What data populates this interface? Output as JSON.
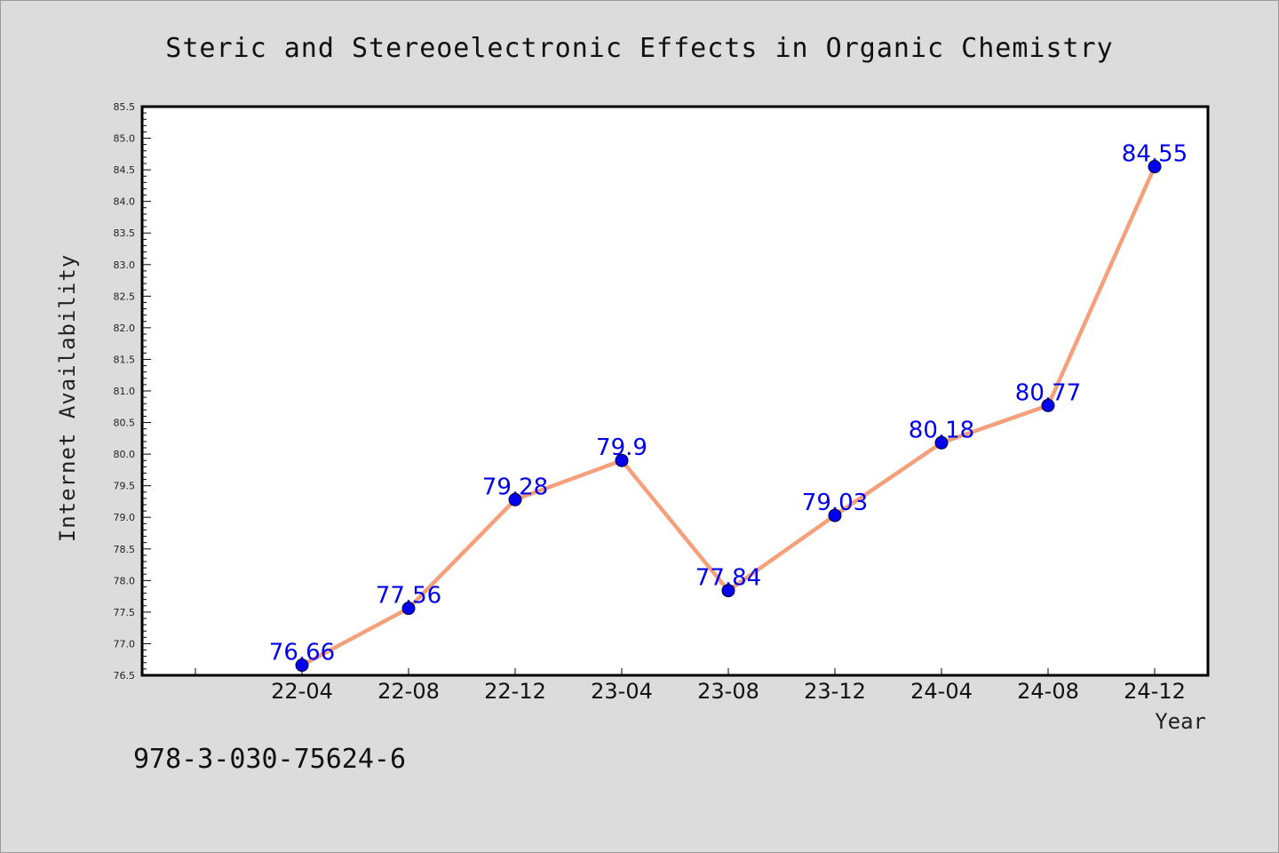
{
  "chart_data": {
    "type": "line",
    "title": "Steric and Stereoelectronic Effects in Organic Chemistry",
    "xlabel": "Year",
    "ylabel": "Internet Availability",
    "categories": [
      "22-04",
      "22-08",
      "22-12",
      "23-04",
      "23-08",
      "23-12",
      "24-04",
      "24-08",
      "24-12"
    ],
    "series": [
      {
        "values": [
          76.66,
          77.56,
          79.28,
          79.9,
          77.84,
          79.03,
          80.18,
          80.77,
          84.55
        ],
        "data_labels": [
          "76.66",
          "77.56",
          "79.28",
          "79.9",
          "77.84",
          "79.03",
          "80.18",
          "80.77",
          "84.55"
        ],
        "line_color": "#f5a07a",
        "marker_color": "#0000ee"
      }
    ],
    "ylim": [
      76.5,
      85.5
    ],
    "yticks": [
      "76.5",
      "77.0",
      "77.5",
      "78.0",
      "78.5",
      "79.0",
      "79.5",
      "80.0",
      "80.5",
      "81.0",
      "81.5",
      "82.0",
      "82.5",
      "83.0",
      "83.5",
      "84.0",
      "84.5",
      "85.0",
      "85.5"
    ],
    "grid": false,
    "label_color": "#0000ee"
  },
  "footer": {
    "isbn": "978-3-030-75624-6"
  }
}
